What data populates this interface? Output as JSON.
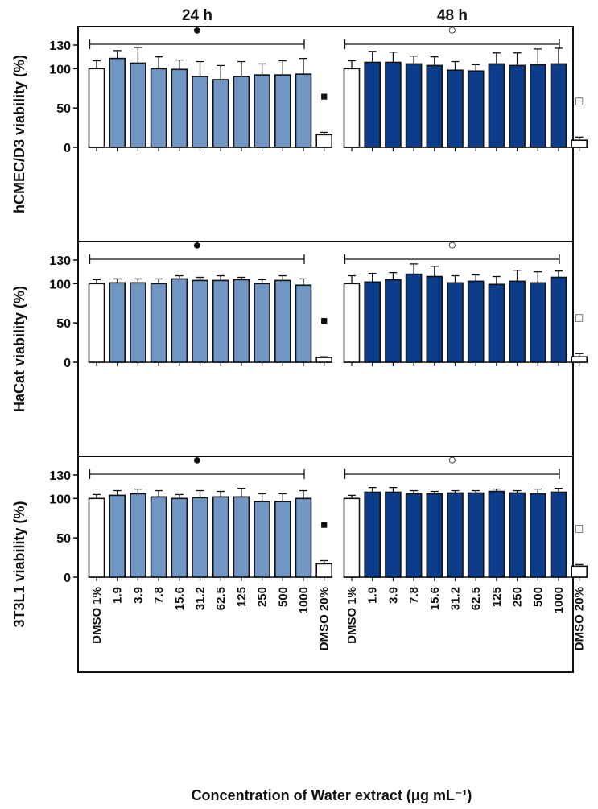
{
  "chart_data": {
    "type": "bar",
    "xlabel": "Concentration of Water extract (μg mL⁻¹)",
    "categories": [
      "DMSO 1%",
      "1.9",
      "3.9",
      "7.8",
      "15.6",
      "31.2",
      "62.5",
      "125",
      "250",
      "500",
      "1000",
      "DMSO 20%"
    ],
    "column_titles": [
      "24 h",
      "48 h"
    ],
    "ylim": [
      0,
      150
    ],
    "yticks": [
      0,
      50,
      100,
      130
    ],
    "colors": {
      "light": "#7096c4",
      "dark": "#0b3d8a",
      "control": "#ffffff",
      "stroke": "#111111"
    },
    "panels": [
      {
        "ylabel": "hCMEC/D3 viability (%)",
        "series": [
          {
            "name": "24 h",
            "bracket_marker": "●",
            "low_marker": "■",
            "values": [
              100,
              113,
              107,
              100,
              99,
              90,
              86,
              90,
              92,
              92,
              93,
              16
            ],
            "errors": [
              10,
              10,
              20,
              15,
              12,
              19,
              18,
              19,
              14,
              18,
              20,
              3
            ]
          },
          {
            "name": "48 h",
            "bracket_marker": "○",
            "low_marker": "□",
            "values": [
              100,
              108,
              108,
              106,
              104,
              98,
              97,
              106,
              104,
              105,
              106,
              9
            ],
            "errors": [
              10,
              14,
              13,
              10,
              11,
              11,
              8,
              14,
              16,
              20,
              20,
              4
            ]
          }
        ]
      },
      {
        "ylabel": "HaCat viability (%)",
        "series": [
          {
            "name": "24 h",
            "bracket_marker": "●",
            "low_marker": "■",
            "values": [
              100,
              101,
              101,
              100,
              106,
              104,
              104,
              105,
              100,
              104,
              98,
              6
            ],
            "errors": [
              5,
              5,
              5,
              6,
              4,
              4,
              6,
              3,
              5,
              6,
              8,
              1
            ]
          },
          {
            "name": "48 h",
            "bracket_marker": "○",
            "low_marker": "□",
            "values": [
              100,
              102,
              105,
              112,
              109,
              101,
              103,
              99,
              103,
              101,
              108,
              7
            ],
            "errors": [
              10,
              11,
              9,
              13,
              13,
              9,
              8,
              10,
              14,
              14,
              8,
              4
            ]
          }
        ]
      },
      {
        "ylabel": "3T3L1 viability (%)",
        "series": [
          {
            "name": "24 h",
            "bracket_marker": "●",
            "low_marker": "■",
            "values": [
              100,
              104,
              106,
              102,
              100,
              101,
              102,
              102,
              96,
              96,
              100,
              17
            ],
            "errors": [
              5,
              6,
              6,
              8,
              5,
              9,
              7,
              11,
              10,
              10,
              10,
              4
            ]
          },
          {
            "name": "48 h",
            "bracket_marker": "○",
            "low_marker": "□",
            "values": [
              100,
              108,
              108,
              106,
              106,
              107,
              107,
              109,
              107,
              106,
              108,
              14
            ],
            "errors": [
              4,
              6,
              6,
              4,
              3,
              3,
              3,
              3,
              3,
              6,
              5,
              2
            ]
          }
        ]
      }
    ]
  }
}
